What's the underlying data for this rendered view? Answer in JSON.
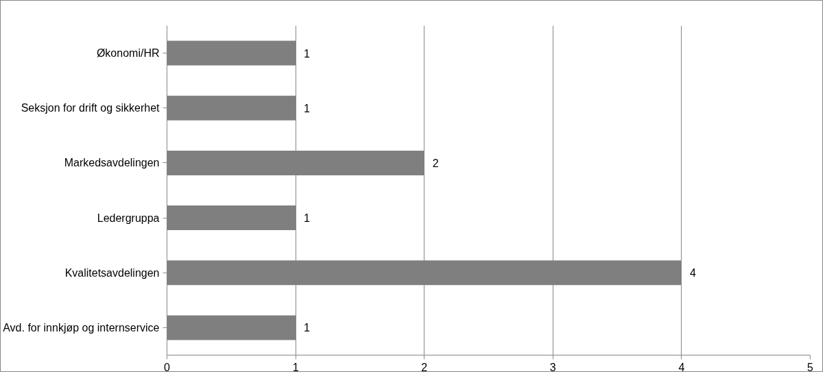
{
  "chart_data": {
    "type": "bar",
    "orientation": "horizontal",
    "categories": [
      "Økonomi/HR",
      "Seksjon for drift og sikkerhet",
      "Markedsavdelingen",
      "Ledergruppa",
      "Kvalitetsavdelingen",
      "Avd. for innkjøp og internservice"
    ],
    "values": [
      1,
      1,
      2,
      1,
      4,
      1
    ],
    "color": "#7f7f7f",
    "xlim": [
      0,
      5
    ],
    "xticks": [
      0,
      1,
      2,
      3,
      4,
      5
    ],
    "grid": "x",
    "data_labels": true
  }
}
